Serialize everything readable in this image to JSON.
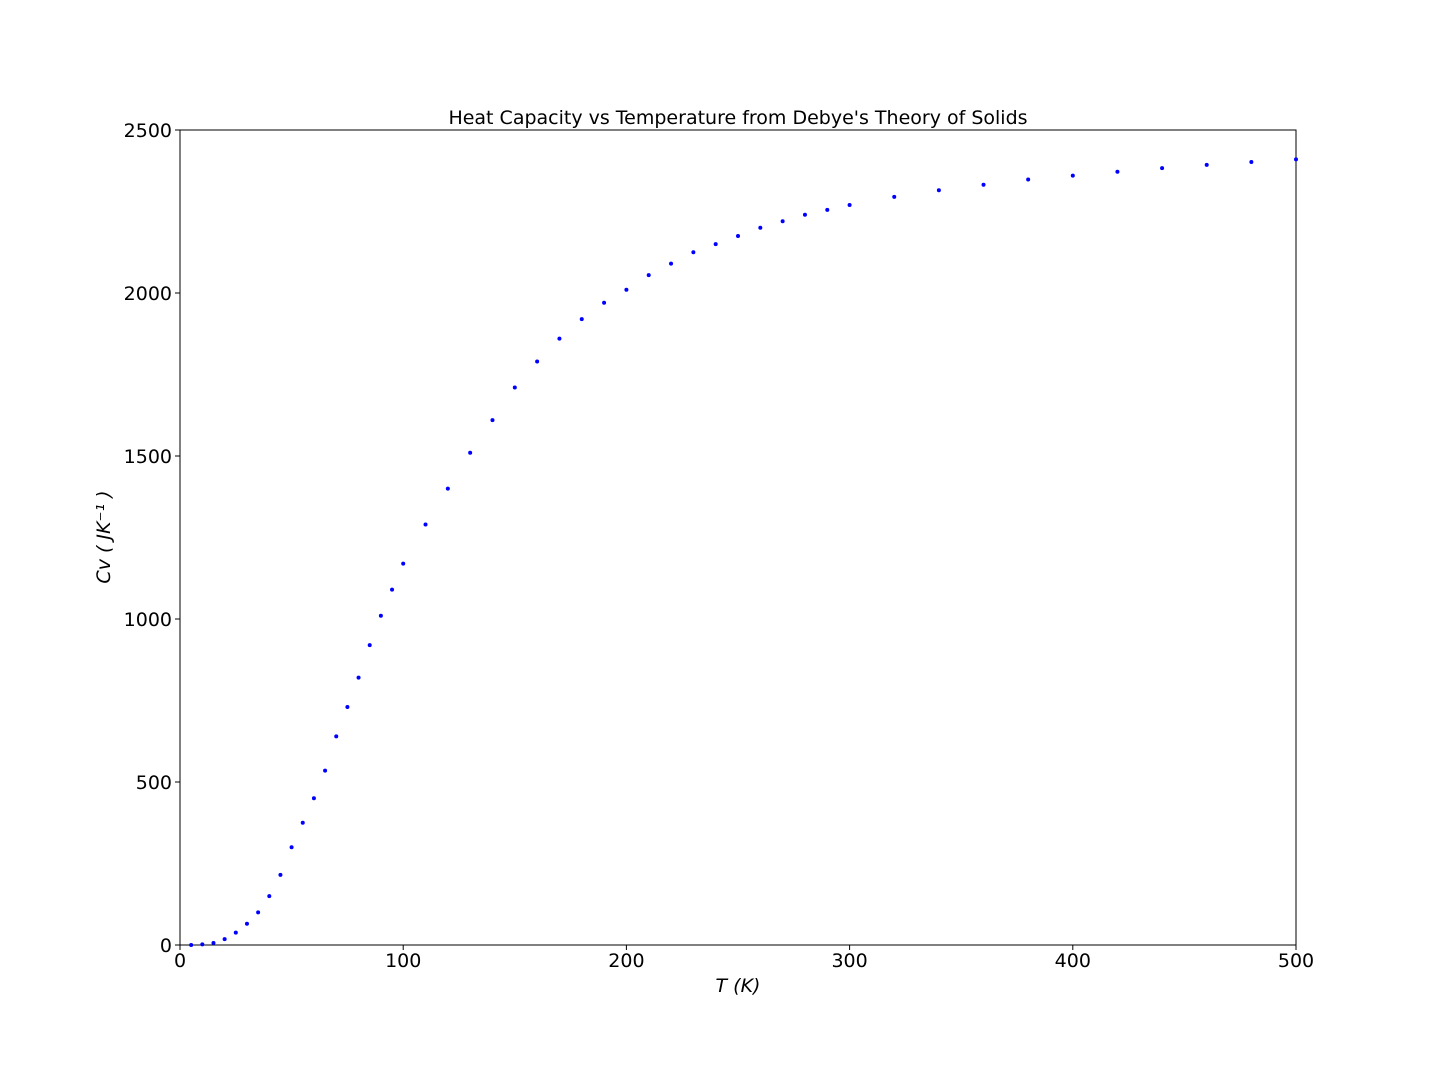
{
  "chart_data": {
    "type": "scatter",
    "title": "Heat Capacity vs Temperature from Debye's Theory of Solids",
    "xlabel": "T (K)",
    "ylabel": "Cv ( JK⁻¹ )",
    "x": [
      5,
      10,
      15,
      20,
      25,
      30,
      35,
      40,
      45,
      50,
      55,
      60,
      65,
      70,
      75,
      80,
      85,
      90,
      95,
      100,
      110,
      120,
      130,
      140,
      150,
      160,
      170,
      180,
      190,
      200,
      210,
      220,
      230,
      240,
      250,
      260,
      270,
      280,
      290,
      300,
      320,
      340,
      360,
      380,
      400,
      420,
      440,
      460,
      480,
      500
    ],
    "series": [
      {
        "color": "#0000ff",
        "values": [
          0,
          2,
          6,
          18,
          38,
          65,
          100,
          150,
          215,
          300,
          375,
          450,
          535,
          640,
          730,
          820,
          920,
          1010,
          1090,
          1170,
          1290,
          1400,
          1510,
          1610,
          1710,
          1790,
          1860,
          1920,
          1970,
          2010,
          2055,
          2090,
          2125,
          2150,
          2175,
          2200,
          2220,
          2240,
          2255,
          2270,
          2295,
          2315,
          2332,
          2348,
          2360,
          2372,
          2383,
          2393,
          2402,
          2410
        ]
      }
    ],
    "xlim": [
      0,
      500
    ],
    "xticks": [
      0,
      100,
      200,
      300,
      400,
      500
    ],
    "ylim": [
      0,
      2500
    ],
    "yticks": [
      0,
      500,
      1000,
      1500,
      2000,
      2500
    ],
    "grid": false
  }
}
